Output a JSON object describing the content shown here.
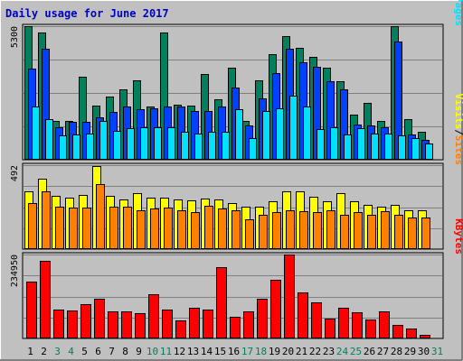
{
  "chart_data": {
    "type": "bar",
    "title": "Daily usage for June 2017",
    "colors": {
      "hits": "#00805c",
      "files": "#0040ff",
      "pages": "#00e0ff",
      "visits": "#ffff00",
      "sites": "#ff8000",
      "kbytes": "#ff0000",
      "weekday_label": "#000000",
      "weekend_label": "#00805c",
      "panel_bg": "#c0c0c0"
    },
    "x": {
      "days": [
        "1",
        "2",
        "3",
        "4",
        "5",
        "6",
        "7",
        "8",
        "9",
        "10",
        "11",
        "12",
        "13",
        "14",
        "15",
        "16",
        "17",
        "18",
        "19",
        "20",
        "21",
        "22",
        "23",
        "24",
        "25",
        "26",
        "27",
        "28",
        "29",
        "30",
        "31"
      ],
      "weekend_days": [
        "3",
        "4",
        "10",
        "11",
        "17",
        "18",
        "24",
        "25",
        "31"
      ]
    },
    "panels": [
      {
        "id": "hits-files-pages",
        "ymax_label": "5300",
        "ylim": [
          0,
          5300
        ],
        "right_labels": [
          {
            "text": "Hits",
            "color_key": "hits"
          },
          {
            "text": "/",
            "color_key": "separator"
          },
          {
            "text": "Files",
            "color_key": "files"
          },
          {
            "text": "/",
            "color_key": "separator"
          },
          {
            "text": "Pages",
            "color_key": "pages"
          }
        ],
        "series": [
          {
            "name": "Hits",
            "color_key": "hits",
            "values": [
              5300,
              5050,
              1550,
              1550,
              3300,
              2150,
              2500,
              2800,
              3150,
              2100,
              5050,
              2200,
              2150,
              3400,
              2400,
              3650,
              1550,
              3150,
              4200,
              4900,
              4450,
              4100,
              3650,
              3100,
              1800,
              2250,
              1550,
              5300,
              1600,
              1100,
              null
            ]
          },
          {
            "name": "Files",
            "color_key": "files",
            "values": [
              3600,
              4400,
              1300,
              1500,
              1500,
              1700,
              1900,
              2100,
              2000,
              2050,
              2100,
              2100,
              1950,
              1950,
              2100,
              2850,
              1350,
              2450,
              3450,
              4400,
              3850,
              3700,
              3100,
              2800,
              1400,
              1350,
              1300,
              4700,
              1000,
              800,
              null
            ]
          },
          {
            "name": "Pages",
            "color_key": "pages",
            "values": [
              2100,
              1600,
              950,
              1000,
              1050,
              1550,
              1150,
              1250,
              1300,
              1300,
              1300,
              1100,
              1050,
              1100,
              1100,
              2000,
              850,
              1950,
              2050,
              2550,
              2100,
              1200,
              1300,
              1000,
              1250,
              1050,
              1050,
              950,
              850,
              650,
              null
            ]
          }
        ]
      },
      {
        "id": "visits-sites",
        "ymax_label": "492",
        "ylim": [
          0,
          492
        ],
        "right_labels": [
          {
            "text": "Visits",
            "color_key": "visits"
          },
          {
            "text": "/",
            "color_key": "separator"
          },
          {
            "text": "Sites",
            "color_key": "sites"
          }
        ],
        "series": [
          {
            "name": "Visits",
            "color_key": "visits",
            "values": [
              340,
              410,
              310,
              300,
              315,
              485,
              310,
              290,
              330,
              300,
              300,
              290,
              285,
              295,
              290,
              270,
              250,
              250,
              280,
              340,
              340,
              305,
              280,
              330,
              280,
              260,
              250,
              260,
              225,
              230,
              null
            ]
          },
          {
            "name": "Sites",
            "color_key": "sites",
            "values": [
              270,
              340,
              250,
              245,
              245,
              380,
              250,
              250,
              225,
              240,
              245,
              225,
              215,
              255,
              240,
              225,
              175,
              200,
              215,
              225,
              220,
              215,
              225,
              200,
              215,
              200,
              220,
              200,
              185,
              185,
              null
            ]
          }
        ]
      },
      {
        "id": "kbytes",
        "ymax_label": "234950",
        "ylim": [
          0,
          234950
        ],
        "right_labels": [
          {
            "text": "KBytes",
            "color_key": "kbytes"
          }
        ],
        "series": [
          {
            "name": "KBytes",
            "color_key": "kbytes",
            "values": [
              160000,
              218000,
              80000,
              78000,
              95000,
              110000,
              75000,
              77000,
              72000,
              124000,
              81000,
              50000,
              86000,
              80000,
              200000,
              60000,
              75000,
              110000,
              164000,
              234950,
              130000,
              100000,
              55000,
              85000,
              73000,
              52000,
              75000,
              38000,
              28000,
              10000,
              null
            ]
          }
        ]
      }
    ]
  }
}
